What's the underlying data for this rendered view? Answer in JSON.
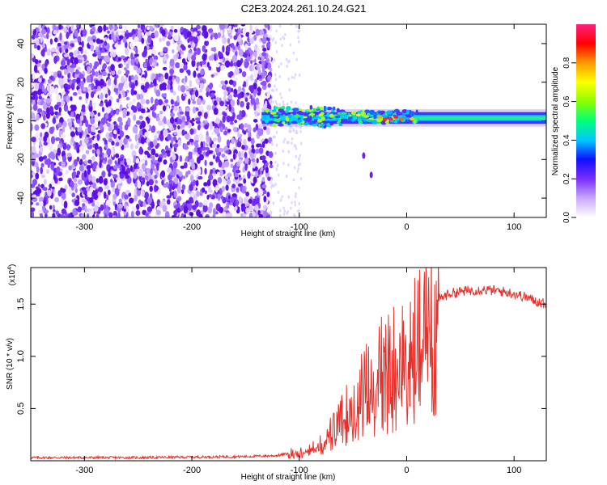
{
  "title": "C2E3.2024.261.10.24.G21",
  "colors": {
    "snr_line": "#e8302a",
    "frame": "#000000",
    "background": "#ffffff"
  },
  "chart_data": [
    {
      "type": "heatmap",
      "xlabel": "Height of straight line (km)",
      "ylabel": "Frequency (Hz)",
      "xlim": [
        -350,
        130
      ],
      "ylim": [
        -50,
        50
      ],
      "x_ticks": [
        -300,
        -200,
        -100,
        0,
        100
      ],
      "y_ticks": [
        -40,
        -20,
        0,
        20,
        40
      ],
      "colorbar": {
        "label": "Normalized spectral amplitude",
        "range": [
          0,
          1
        ],
        "ticks": [
          0.0,
          0.2,
          0.4,
          0.6,
          0.8
        ],
        "colormap": [
          "#ffffff",
          "#c8a8ff",
          "#7a2cff",
          "#1010ff",
          "#00c8ff",
          "#00ff7a",
          "#8aff00",
          "#ffff00",
          "#ff9900",
          "#ff0000",
          "#ff2080"
        ]
      },
      "features": {
        "noise_region_x": [
          -350,
          -130
        ],
        "signal_band_center_hz": 1,
        "signal_onset_x": -135,
        "detached_streaks": [
          {
            "x": -40,
            "y": -18
          },
          {
            "x": -33,
            "y": -28
          }
        ]
      }
    },
    {
      "type": "line",
      "xlabel": "Height of straight line (km)",
      "ylabel": "SNR (10 * v/v)",
      "y_multiplier": "(x10",
      "y_multiplier_exp": "4",
      "xlim": [
        -350,
        130
      ],
      "ylim": [
        0,
        1.85
      ],
      "x_ticks": [
        -300,
        -200,
        -100,
        0,
        100
      ],
      "y_ticks": [
        0.5,
        1.0,
        1.5
      ],
      "series": [
        {
          "x": [
            -350,
            -300,
            -250,
            -200,
            -150,
            -120,
            -110,
            -100,
            -95,
            -90,
            -85,
            -80,
            -75,
            -70,
            -65,
            -60,
            -55,
            -50,
            -45,
            -40,
            -35,
            -30,
            -25,
            -20,
            -15,
            -10,
            -5,
            0,
            5,
            10,
            20,
            30,
            40,
            50,
            60,
            70,
            80,
            90,
            100,
            110,
            120,
            130
          ],
          "y": [
            0.03,
            0.03,
            0.03,
            0.035,
            0.04,
            0.05,
            0.07,
            0.1,
            0.12,
            0.15,
            0.14,
            0.2,
            0.25,
            0.3,
            0.35,
            0.45,
            0.55,
            0.6,
            0.7,
            0.75,
            0.85,
            0.9,
            0.95,
            1.0,
            1.05,
            1.1,
            1.05,
            1.15,
            1.2,
            1.3,
            1.45,
            1.55,
            1.6,
            1.62,
            1.63,
            1.64,
            1.63,
            1.62,
            1.6,
            1.57,
            1.53,
            1.5
          ]
        }
      ]
    }
  ]
}
